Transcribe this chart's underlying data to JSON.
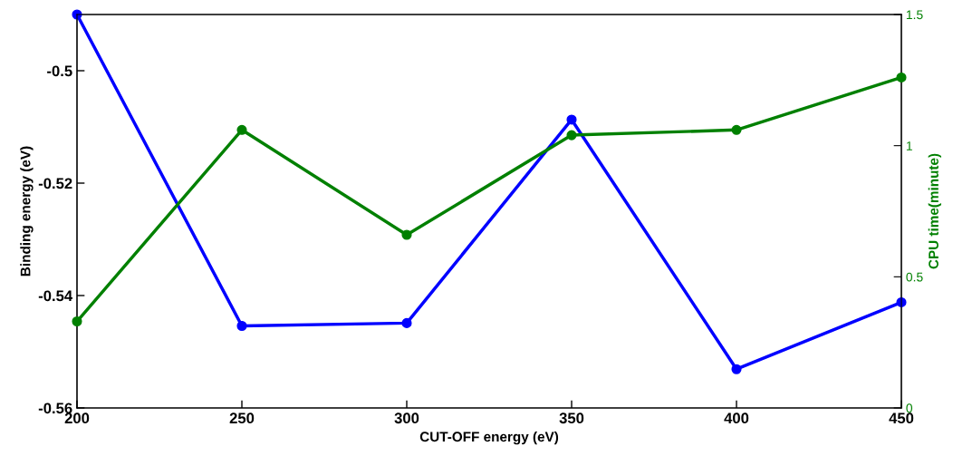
{
  "chart_data": {
    "type": "line",
    "xlabel": "CUT-OFF energy (eV)",
    "ylabel": "Binding energy (eV)",
    "y2label": "CPU time(minute)",
    "x": [
      200,
      250,
      300,
      350,
      400,
      450
    ],
    "series": [
      {
        "color": "#0000ff",
        "values": [
          -0.49,
          -0.5454,
          -0.5449,
          -0.5087,
          -0.5531,
          -0.5412
        ]
      },
      {
        "color": "#008000",
        "axis": "y2",
        "values": [
          0.33,
          1.06,
          0.66,
          1.04,
          1.06,
          1.26
        ]
      }
    ],
    "xlim": [
      200,
      450
    ],
    "xticks": [
      200,
      250,
      300,
      350,
      400,
      450
    ],
    "ylim": [
      -0.56,
      -0.49
    ],
    "yticks": [
      -0.56,
      -0.54,
      -0.52,
      -0.5
    ],
    "y2lim": [
      0,
      1.5
    ],
    "y2ticks": [
      0,
      0.5,
      1,
      1.5
    ],
    "marker": "circle",
    "line_style": "solid",
    "grid": false,
    "legend": false
  }
}
